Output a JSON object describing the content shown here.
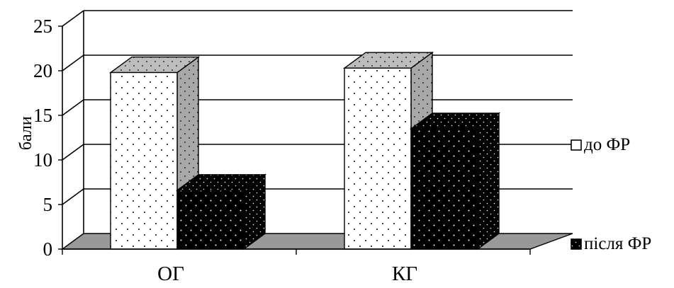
{
  "chart_data": {
    "type": "bar",
    "subtype": "3d-clustered",
    "categories": [
      "ОГ",
      "КГ"
    ],
    "series": [
      {
        "name": "до ФР",
        "values": [
          19.8,
          20.3
        ],
        "color": "#ffffff",
        "pattern": "sparse-dots"
      },
      {
        "name": "після ФР",
        "values": [
          6.6,
          13.5
        ],
        "color": "#000000",
        "pattern": "dense-dots"
      }
    ],
    "ylabel": "бали",
    "xlabel": "",
    "ylim": [
      0,
      25
    ],
    "yticks": [
      "0",
      "5",
      "10",
      "15",
      "20",
      "25"
    ],
    "grid": true,
    "legend_position": "right",
    "colors": {
      "floor": "#999999",
      "side_light": "#aaaaaa",
      "top_light": "#bdbdbd",
      "dark": "#000000"
    }
  }
}
